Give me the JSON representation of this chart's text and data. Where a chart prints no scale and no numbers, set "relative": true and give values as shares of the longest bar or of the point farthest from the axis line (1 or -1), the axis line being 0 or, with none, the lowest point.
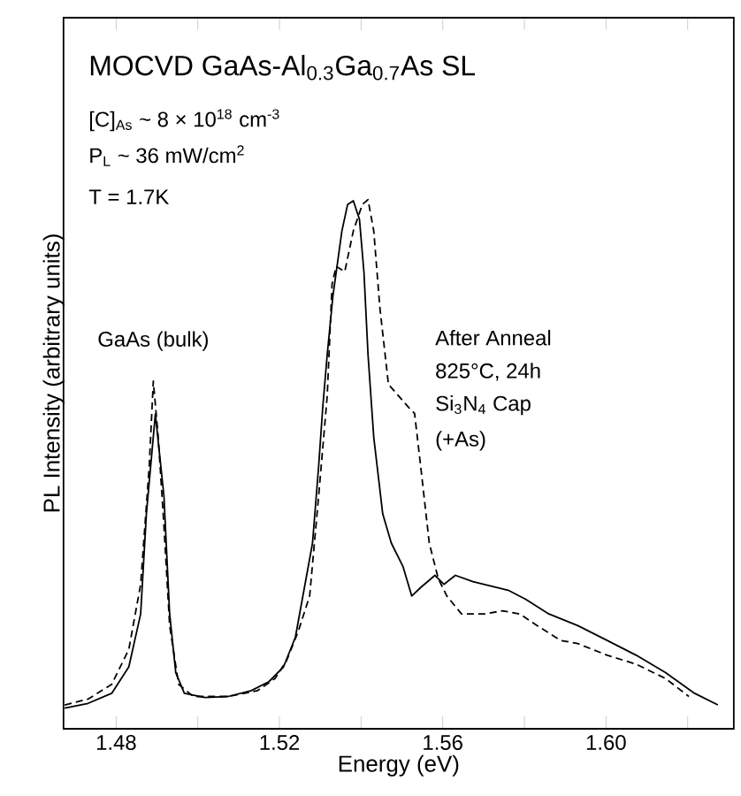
{
  "chart_data": {
    "type": "line",
    "relative": true,
    "title": "MOCVD GaAs-Al$_{0.3}$Ga$_{0.7}$As SL",
    "xlabel": "Energy (eV)",
    "ylabel": "PL Intensity (arbitrary units)",
    "xlim": [
      1.4671,
      1.6313
    ],
    "xticks": [
      1.48,
      {
        "value": 1.5,
        "label": null
      },
      1.52,
      {
        "value": 1.54,
        "label": null
      },
      1.56,
      {
        "value": 1.58,
        "label": null
      },
      {
        "value": 1.6,
        "label": "1.60"
      },
      {
        "value": 1.62,
        "label": null
      }
    ],
    "grid": false,
    "marker": "none",
    "annotations": [
      "[C]$_{As}$ ~ 8 × 10$^{18}$ cm$^{-3}$",
      "P$_{L}$ ~ 36 mW/cm$^{2}$",
      "T = 1.7K",
      {
        "text": "GaAs (bulk)",
        "x": 1.4891,
        "y": 0.657
      },
      "After Anneal",
      "825°C, 24h",
      "Si$_{3}$N$_{4}$ Cap",
      "(+As)"
    ],
    "series": [
      {
        "color": "#000000",
        "line_style": "solid",
        "x": [
          1.4674,
          1.4731,
          1.4789,
          1.4831,
          1.486,
          1.4874,
          1.4896,
          1.4917,
          1.4931,
          1.4946,
          1.4967,
          1.5017,
          1.5074,
          1.5131,
          1.5174,
          1.521,
          1.5239,
          1.526,
          1.5281,
          1.5296,
          1.5306,
          1.5317,
          1.5331,
          1.5353,
          1.5367,
          1.5381,
          1.5396,
          1.5407,
          1.5417,
          1.5431,
          1.5453,
          1.5474,
          1.5503,
          1.5524,
          1.5546,
          1.5581,
          1.5603,
          1.5631,
          1.5674,
          1.576,
          1.5803,
          1.586,
          1.5931,
          1.6003,
          1.6074,
          1.6146,
          1.6217,
          1.6274
        ],
        "values": [
          0.039,
          0.048,
          0.067,
          0.117,
          0.217,
          0.406,
          0.595,
          0.44,
          0.217,
          0.106,
          0.067,
          0.059,
          0.061,
          0.072,
          0.089,
          0.117,
          0.173,
          0.262,
          0.351,
          0.496,
          0.607,
          0.707,
          0.818,
          0.941,
          0.991,
          0.998,
          0.963,
          0.863,
          0.707,
          0.551,
          0.406,
          0.351,
          0.306,
          0.251,
          0.267,
          0.29,
          0.273,
          0.29,
          0.278,
          0.262,
          0.245,
          0.217,
          0.195,
          0.167,
          0.139,
          0.106,
          0.067,
          0.045
        ]
      },
      {
        "color": "#000000",
        "line_style": "dashed",
        "x": [
          1.4674,
          1.4731,
          1.4789,
          1.4831,
          1.486,
          1.4881,
          1.4891,
          1.4903,
          1.4917,
          1.4931,
          1.4953,
          1.4989,
          1.5074,
          1.5146,
          1.5189,
          1.5217,
          1.5246,
          1.5274,
          1.5296,
          1.5317,
          1.5329,
          1.5339,
          1.536,
          1.5381,
          1.5403,
          1.5417,
          1.5431,
          1.5446,
          1.5467,
          1.5517,
          1.5531,
          1.5546,
          1.5567,
          1.5589,
          1.561,
          1.5646,
          1.5703,
          1.5746,
          1.5789,
          1.5831,
          1.5889,
          1.5931,
          1.6003,
          1.6074,
          1.6146,
          1.6203
        ],
        "values": [
          0.045,
          0.056,
          0.084,
          0.15,
          0.273,
          0.496,
          0.657,
          0.551,
          0.384,
          0.195,
          0.084,
          0.061,
          0.061,
          0.072,
          0.095,
          0.128,
          0.184,
          0.251,
          0.44,
          0.629,
          0.841,
          0.874,
          0.864,
          0.941,
          0.991,
          1.0,
          0.941,
          0.796,
          0.651,
          0.607,
          0.596,
          0.496,
          0.351,
          0.284,
          0.251,
          0.217,
          0.217,
          0.223,
          0.217,
          0.195,
          0.167,
          0.161,
          0.139,
          0.122,
          0.095,
          0.061
        ]
      }
    ]
  }
}
